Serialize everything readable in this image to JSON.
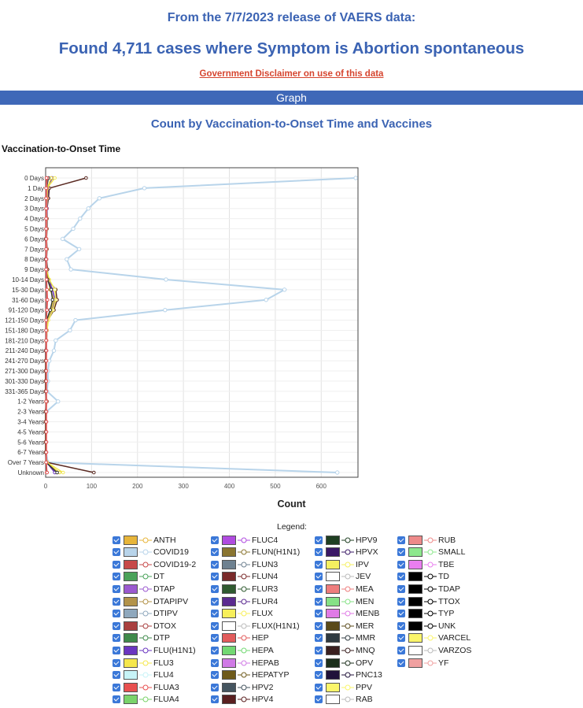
{
  "header": {
    "line1": "From the 7/7/2023 release of VAERS data:",
    "line2": "Found 4,711 cases where Symptom is Abortion spontaneous",
    "disclaimer": "Government Disclaimer on use of this data",
    "section_bar": "Graph"
  },
  "chart_data": {
    "type": "line",
    "title": "Count by Vaccination-to-Onset Time and Vaccines",
    "ylabel": "Vaccination-to-Onset Time",
    "xlabel": "Count",
    "xlim": [
      0,
      680
    ],
    "x_ticks": [
      0,
      100,
      200,
      300,
      400,
      500,
      600
    ],
    "grid": true,
    "categories": [
      "0 Days",
      "1 Day",
      "2 Days",
      "3 Days",
      "4 Days",
      "5 Days",
      "6 Days",
      "7 Days",
      "8 Days",
      "9 Days",
      "10-14 Days",
      "15-30 Days",
      "31-60 Days",
      "91-120 Days",
      "121-150 Days",
      "151-180 Days",
      "181-210 Days",
      "211-240 Days",
      "241-270 Days",
      "271-300 Days",
      "301-330 Days",
      "331-365 Days",
      "1-2 Years",
      "2-3 Years",
      "3-4 Years",
      "4-5 Years",
      "5-6 Years",
      "6-7 Years",
      "Over 7 Years",
      "Unknown"
    ],
    "series": [
      {
        "name": "COVID19",
        "color": "#b8d4ea",
        "values": [
          675,
          215,
          117,
          93,
          75,
          60,
          37,
          73,
          46,
          55,
          262,
          520,
          480,
          260,
          65,
          53,
          22,
          18,
          8,
          5,
          5,
          3,
          27,
          2,
          1,
          1,
          1,
          1,
          5,
          635
        ]
      },
      {
        "name": "HPV4",
        "color": "#5a2a22",
        "values": [
          88,
          8,
          6,
          3,
          3,
          3,
          2,
          3,
          2,
          4,
          5,
          22,
          25,
          18,
          5,
          3,
          2,
          1,
          1,
          0,
          0,
          0,
          3,
          0,
          0,
          0,
          0,
          0,
          3,
          105
        ]
      },
      {
        "name": "FLU(H1N1)",
        "color": "#6a35c0",
        "values": [
          14,
          5,
          4,
          3,
          2,
          2,
          2,
          2,
          2,
          2,
          6,
          15,
          20,
          14,
          5,
          3,
          2,
          2,
          1,
          1,
          1,
          0,
          2,
          0,
          0,
          0,
          0,
          0,
          2,
          20
        ]
      },
      {
        "name": "FLUX",
        "color": "#f2ea58",
        "values": [
          20,
          3,
          3,
          2,
          2,
          2,
          2,
          2,
          1,
          2,
          8,
          20,
          22,
          16,
          6,
          3,
          2,
          1,
          1,
          1,
          1,
          0,
          2,
          0,
          0,
          0,
          0,
          0,
          3,
          38
        ]
      },
      {
        "name": "FLU3",
        "color": "#e8d63a",
        "values": [
          12,
          4,
          3,
          2,
          2,
          2,
          1,
          2,
          1,
          2,
          6,
          10,
          18,
          12,
          3,
          2,
          1,
          1,
          0,
          0,
          0,
          0,
          1,
          0,
          0,
          0,
          0,
          0,
          1,
          30
        ]
      },
      {
        "name": "HPV2",
        "color": "#333333",
        "values": [
          6,
          2,
          1,
          1,
          1,
          1,
          0,
          1,
          0,
          1,
          4,
          12,
          15,
          10,
          2,
          1,
          1,
          0,
          0,
          0,
          0,
          0,
          1,
          0,
          0,
          0,
          0,
          0,
          1,
          25
        ]
      },
      {
        "name": "RUB",
        "color": "#e88b8b",
        "values": [
          3,
          2,
          2,
          2,
          2,
          2,
          2,
          2,
          2,
          2,
          2,
          2,
          2,
          2,
          2,
          2,
          2,
          2,
          2,
          2,
          2,
          2,
          2,
          2,
          2,
          2,
          2,
          2,
          2,
          2
        ]
      },
      {
        "name": "HEP",
        "color": "#e05050",
        "values": [
          2,
          1,
          1,
          1,
          1,
          1,
          1,
          1,
          1,
          1,
          2,
          3,
          4,
          3,
          1,
          1,
          1,
          1,
          1,
          1,
          1,
          1,
          1,
          1,
          1,
          1,
          1,
          1,
          1,
          3
        ]
      }
    ]
  },
  "legend": {
    "title": "Legend:",
    "columns": [
      [
        {
          "name": "ANTH",
          "color": "#e7b53a",
          "marker": "-○-"
        },
        {
          "name": "COVID19",
          "color": "#b8d4ea",
          "marker": "-○-"
        },
        {
          "name": "COVID19-2",
          "color": "#c74949",
          "marker": "-△-"
        },
        {
          "name": "DT",
          "color": "#4aa25a",
          "marker": "-◇-"
        },
        {
          "name": "DTAP",
          "color": "#9b59d0",
          "marker": "-×-"
        },
        {
          "name": "DTAPIPV",
          "color": "#b3934a",
          "marker": "-+-"
        },
        {
          "name": "DTIPV",
          "color": "#8fa8bd",
          "marker": "-○-"
        },
        {
          "name": "DTOX",
          "color": "#a94040",
          "marker": "-□-"
        },
        {
          "name": "DTP",
          "color": "#3f8a4b",
          "marker": "-△-"
        },
        {
          "name": "FLU(H1N1)",
          "color": "#6a35c0",
          "marker": "-◇-"
        },
        {
          "name": "FLU3",
          "color": "#f5e74c",
          "marker": "-×-"
        },
        {
          "name": "FLU4",
          "color": "#c7f3f7",
          "marker": "-+-"
        },
        {
          "name": "FLUA3",
          "color": "#e85050",
          "marker": "-○-"
        },
        {
          "name": "FLUA4",
          "color": "#7ad36a",
          "marker": "-□-"
        }
      ],
      [
        {
          "name": "FLUC4",
          "color": "#b04be0",
          "marker": "-△-"
        },
        {
          "name": "FLUN(H1N1)",
          "color": "#8a7530",
          "marker": "-◇-"
        },
        {
          "name": "FLUN3",
          "color": "#6e8190",
          "marker": "-×-"
        },
        {
          "name": "FLUN4",
          "color": "#7a2a2a",
          "marker": "-+-"
        },
        {
          "name": "FLUR3",
          "color": "#2f5a30",
          "marker": "-○-"
        },
        {
          "name": "FLUR4",
          "color": "#5b2a90",
          "marker": "-□-"
        },
        {
          "name": "FLUX",
          "color": "#f7ef5a",
          "marker": "-△-"
        },
        {
          "name": "FLUX(H1N1)",
          "color": "#ffffff",
          "marker": "-◇-"
        },
        {
          "name": "HEP",
          "color": "#e25b5b",
          "marker": "-×-"
        },
        {
          "name": "HEPA",
          "color": "#72d872",
          "marker": "-+-"
        },
        {
          "name": "HEPAB",
          "color": "#d07ae6",
          "marker": "-○-"
        },
        {
          "name": "HEPATYP",
          "color": "#6e5a1a",
          "marker": "-□-"
        },
        {
          "name": "HPV2",
          "color": "#45555f",
          "marker": "-△-"
        },
        {
          "name": "HPV4",
          "color": "#5a1f1f",
          "marker": "-◇-"
        }
      ],
      [
        {
          "name": "HPV9",
          "color": "#1f3f22",
          "marker": "-×-"
        },
        {
          "name": "HPVX",
          "color": "#3a1866",
          "marker": "-+-"
        },
        {
          "name": "IPV",
          "color": "#f5f060",
          "marker": "-○-"
        },
        {
          "name": "JEV",
          "color": "#ffffff",
          "marker": "-□-"
        },
        {
          "name": "MEA",
          "color": "#ee7d7d",
          "marker": "-△-"
        },
        {
          "name": "MEN",
          "color": "#86e286",
          "marker": "-◇-"
        },
        {
          "name": "MENB",
          "color": "#e07ae6",
          "marker": "-×-"
        },
        {
          "name": "MER",
          "color": "#5a4a1a",
          "marker": "-+-"
        },
        {
          "name": "MMR",
          "color": "#2f3a40",
          "marker": "-○-"
        },
        {
          "name": "MNQ",
          "color": "#3a1f1f",
          "marker": "-□-"
        },
        {
          "name": "OPV",
          "color": "#1c2f1c",
          "marker": "-△-"
        },
        {
          "name": "PNC13",
          "color": "#20123a",
          "marker": "-◇-"
        },
        {
          "name": "PPV",
          "color": "#fbf56a",
          "marker": "-×-"
        },
        {
          "name": "RAB",
          "color": "#ffffff",
          "marker": "-+-"
        }
      ],
      [
        {
          "name": "RUB",
          "color": "#ee8a8a",
          "marker": "-○-"
        },
        {
          "name": "SMALL",
          "color": "#8de88d",
          "marker": "-□-"
        },
        {
          "name": "TBE",
          "color": "#ea7ef0",
          "marker": "-△-"
        },
        {
          "name": "TD",
          "color": "#000000",
          "marker": "-◇-"
        },
        {
          "name": "TDAP",
          "color": "#000000",
          "marker": "-×-"
        },
        {
          "name": "TTOX",
          "color": "#000000",
          "marker": "-+-"
        },
        {
          "name": "TYP",
          "color": "#000000",
          "marker": "-○-"
        },
        {
          "name": "UNK",
          "color": "#000000",
          "marker": "-□-"
        },
        {
          "name": "VARCEL",
          "color": "#fbf56a",
          "marker": "-△-"
        },
        {
          "name": "VARZOS",
          "color": "#ffffff",
          "marker": "-◇-"
        },
        {
          "name": "YF",
          "color": "#f0a0a0",
          "marker": "-×-"
        }
      ]
    ]
  }
}
